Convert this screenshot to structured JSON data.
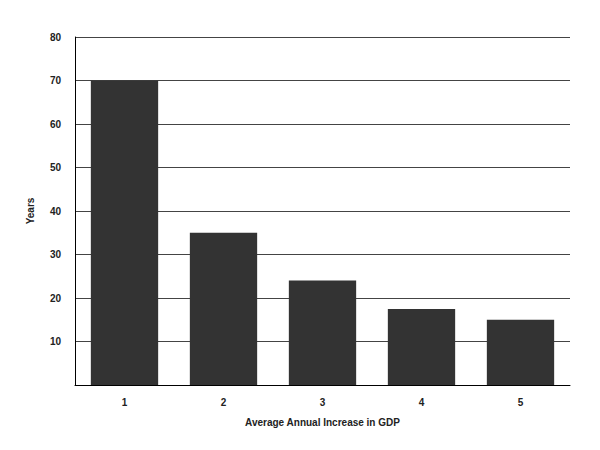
{
  "chart_data": {
    "type": "bar",
    "x_label": "Average Annual Increase in GDP",
    "y_label": "Years",
    "categories": [
      "1",
      "2",
      "3",
      "4",
      "5"
    ],
    "values": [
      70,
      35,
      24,
      17.5,
      15
    ],
    "color": "#333333",
    "ylim": [
      0,
      80
    ],
    "yticks": [
      10,
      20,
      30,
      40,
      50,
      60,
      70,
      80
    ],
    "grid": true
  }
}
